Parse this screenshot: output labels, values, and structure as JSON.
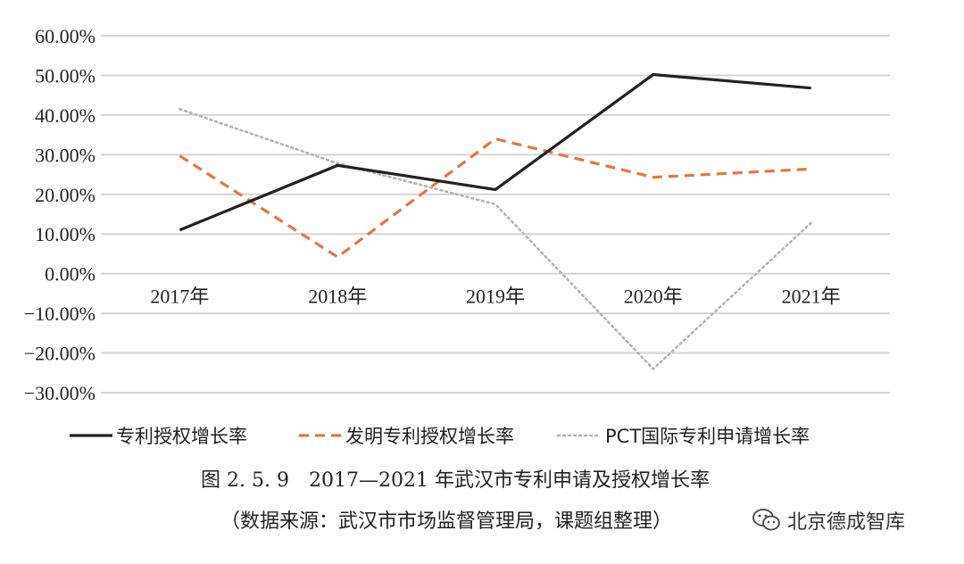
{
  "chart_data": {
    "type": "line",
    "categories": [
      "2017年",
      "2018年",
      "2019年",
      "2020年",
      "2021年"
    ],
    "y_ticks": [
      "60.00%",
      "50.00%",
      "40.00%",
      "30.00%",
      "20.00%",
      "10.00%",
      "0.00%",
      "−10.00%",
      "−20.00%",
      "−30.00%"
    ],
    "ylim": [
      -30,
      60
    ],
    "series": [
      {
        "name": "专利授权增长率",
        "values": [
          11.0,
          27.3,
          21.2,
          50.2,
          46.8
        ],
        "color": "#222222",
        "style": "solid"
      },
      {
        "name": "发明专利授权增长率",
        "values": [
          29.7,
          4.2,
          34.0,
          24.3,
          26.4
        ],
        "color": "#e07840",
        "style": "dashed"
      },
      {
        "name": "PCT国际专利申请增长率",
        "values": [
          41.5,
          27.8,
          17.5,
          -24.0,
          12.8
        ],
        "color": "#b3b3b3",
        "style": "dotted"
      }
    ],
    "legend_position": "bottom",
    "grid": true
  },
  "caption": {
    "title": "图 2. 5. 9　2017—2021 年武汉市专利申请及授权增长率",
    "source": "（数据来源：武汉市市场监督管理局，课题组整理）"
  },
  "watermark": {
    "text": "北京德成智库",
    "icon": "wechat-icon"
  }
}
